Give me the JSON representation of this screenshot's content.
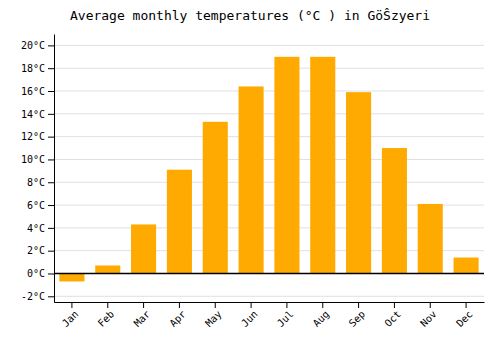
{
  "chart_data": {
    "type": "bar",
    "title": "Average monthly temperatures (°C ) in GöŜzyeri",
    "categories": [
      "Jan",
      "Feb",
      "Mar",
      "Apr",
      "May",
      "Jun",
      "Jul",
      "Aug",
      "Sep",
      "Oct",
      "Nov",
      "Dec"
    ],
    "values": [
      -0.7,
      0.7,
      4.3,
      9.1,
      13.3,
      16.4,
      19.0,
      19.0,
      15.9,
      11.0,
      6.1,
      1.4
    ],
    "color": "#FFAA00",
    "ylim": [
      -2.5,
      21
    ],
    "yticks": [
      {
        "value": -2,
        "label": "-2°C"
      },
      {
        "value": 0,
        "label": "0°C"
      },
      {
        "value": 2,
        "label": "2°C"
      },
      {
        "value": 4,
        "label": "4°C"
      },
      {
        "value": 6,
        "label": "6°C"
      },
      {
        "value": 8,
        "label": "8°C"
      },
      {
        "value": 10,
        "label": "10°C"
      },
      {
        "value": 12,
        "label": "12°C"
      },
      {
        "value": 14,
        "label": "14°C"
      },
      {
        "value": 16,
        "label": "16°C"
      },
      {
        "value": 18,
        "label": "18°C"
      },
      {
        "value": 20,
        "label": "20°C"
      }
    ],
    "grid": true
  }
}
